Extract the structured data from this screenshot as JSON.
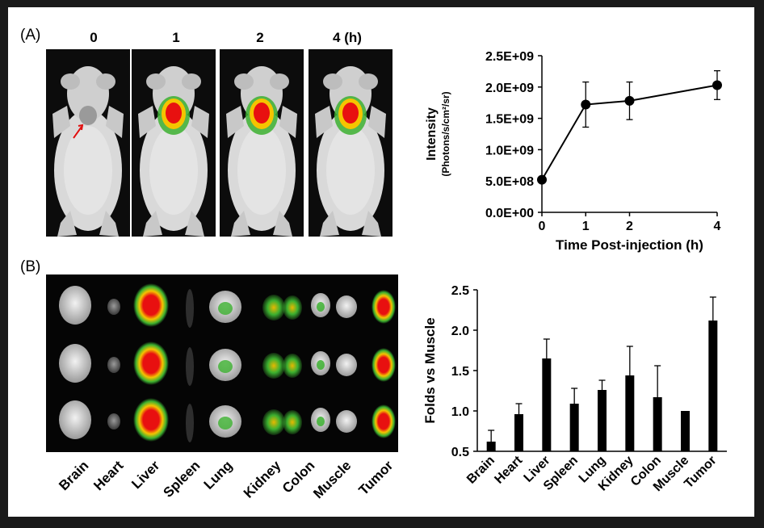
{
  "panels": {
    "a_label": "(A)",
    "b_label": "(B)"
  },
  "imaging": {
    "time_labels": [
      "0",
      "1",
      "2",
      "4 (h)"
    ],
    "organs": [
      "Brain",
      "Heart",
      "Liver",
      "Spleen",
      "Lung",
      "Kidney",
      "Colon",
      "Muscle",
      "Tumor"
    ]
  },
  "chart_data": [
    {
      "type": "line",
      "x": [
        0,
        1,
        2,
        4
      ],
      "y": [
        520000000,
        1720000000,
        1780000000,
        2030000000
      ],
      "error": [
        0,
        360000000,
        300000000,
        230000000
      ],
      "ytick_labels": [
        "0.0E+00",
        "5.0E+08",
        "1.0E+09",
        "1.5E+09",
        "2.0E+09",
        "2.5E+09"
      ],
      "yticks": [
        0,
        500000000,
        1000000000,
        1500000000,
        2000000000,
        2500000000
      ],
      "xticks": [
        0,
        1,
        2,
        4
      ],
      "xtick_labels": [
        "0",
        "1",
        "2",
        "4"
      ],
      "ylim": [
        0,
        2500000000
      ],
      "xlim": [
        0,
        4
      ],
      "xlabel": "Time Post-injection (h)",
      "ylabel": "Intensity",
      "ylabel_sub": "(Photons/s/cm²/sr)"
    },
    {
      "type": "bar",
      "categories": [
        "Brain",
        "Heart",
        "Liver",
        "Spleen",
        "Lung",
        "Kidney",
        "Colon",
        "Muscle",
        "Tumor"
      ],
      "values": [
        0.62,
        0.96,
        1.65,
        1.09,
        1.26,
        1.44,
        1.17,
        1.0,
        2.12
      ],
      "error": [
        0.14,
        0.13,
        0.24,
        0.19,
        0.12,
        0.36,
        0.39,
        0.0,
        0.29
      ],
      "yticks": [
        0.5,
        1.0,
        1.5,
        2.0,
        2.5
      ],
      "ytick_labels": [
        "0.5",
        "1.0",
        "1.5",
        "2.0",
        "2.5"
      ],
      "ylim": [
        0.5,
        2.5
      ],
      "ylabel": "Folds vs Muscle",
      "bar_color": "#000000"
    }
  ]
}
